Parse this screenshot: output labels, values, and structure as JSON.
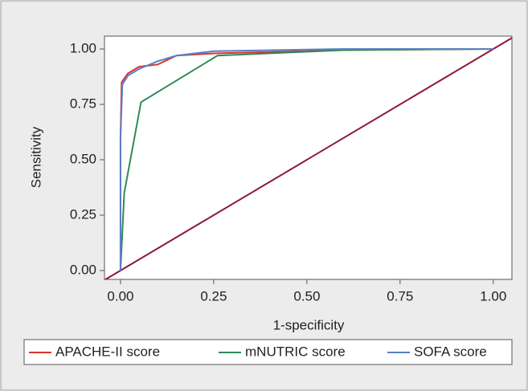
{
  "chart_data": {
    "type": "line",
    "x_label": "1-specificity",
    "y_label": "Sensitivity",
    "xlim": [
      -0.043,
      1.05
    ],
    "ylim": [
      -0.04,
      1.058
    ],
    "xticks": [
      {
        "value": 0,
        "label": "0.00"
      },
      {
        "value": 0.25,
        "label": "0.25"
      },
      {
        "value": 0.5,
        "label": "0.50"
      },
      {
        "value": 0.75,
        "label": "0.75"
      },
      {
        "value": 1,
        "label": "1.00"
      }
    ],
    "yticks": [
      {
        "value": 0,
        "label": "0.00"
      },
      {
        "value": 0.25,
        "label": "0.25"
      },
      {
        "value": 0.5,
        "label": "0.50"
      },
      {
        "value": 0.75,
        "label": "0.75"
      },
      {
        "value": 1,
        "label": "1.00"
      }
    ],
    "diagonal_color": "#8b1a40",
    "series": [
      {
        "name": "APACHE-II score",
        "color": "#d9352b",
        "x": [
          0,
          0,
          0.003,
          0.02,
          0.05,
          0.1,
          0.15,
          0.25,
          0.6,
          1
        ],
        "values": [
          0,
          0.6,
          0.85,
          0.89,
          0.92,
          0.93,
          0.97,
          0.98,
          0.995,
          1
        ]
      },
      {
        "name": "mNUTRIC score",
        "color": "#2e8b57",
        "x": [
          0,
          0.01,
          0.055,
          0.26,
          0.6,
          1
        ],
        "values": [
          0,
          0.35,
          0.76,
          0.97,
          0.995,
          1
        ]
      },
      {
        "name": "SOFA score",
        "color": "#5b7fc8",
        "x": [
          0,
          0,
          0.005,
          0.02,
          0.05,
          0.1,
          0.15,
          0.25,
          0.6,
          1
        ],
        "values": [
          0,
          0.6,
          0.84,
          0.88,
          0.91,
          0.945,
          0.97,
          0.99,
          1,
          1
        ]
      }
    ]
  }
}
